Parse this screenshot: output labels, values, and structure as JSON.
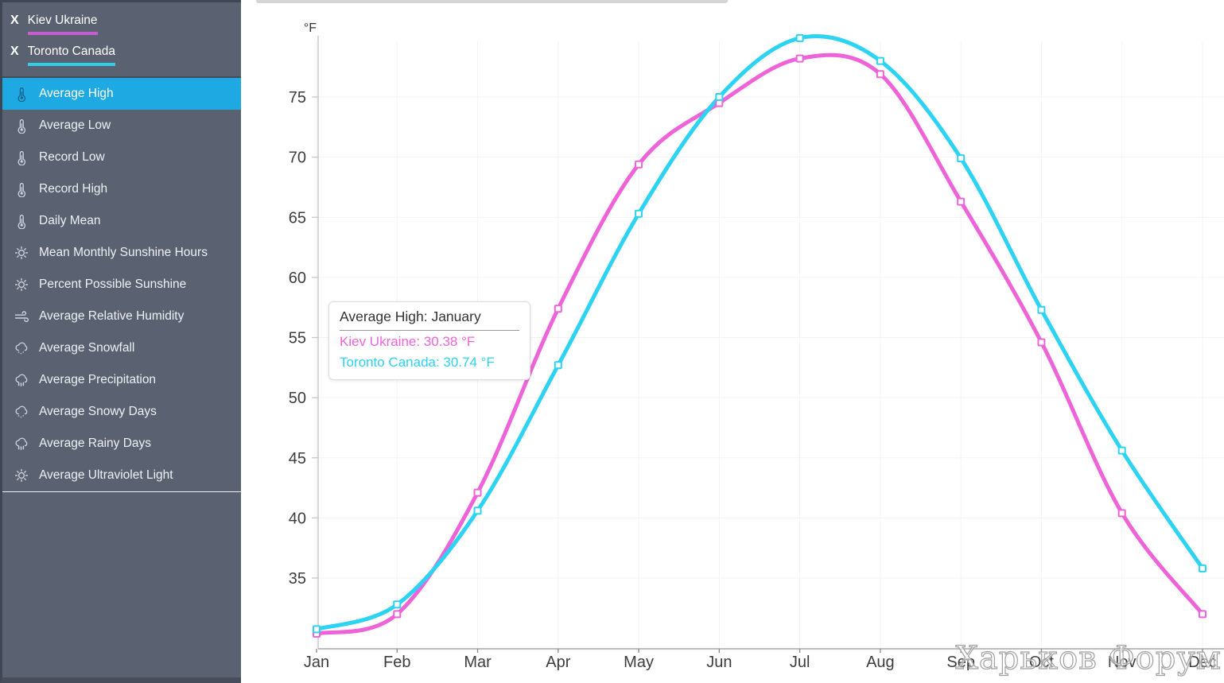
{
  "sidebar": {
    "cities": [
      {
        "label": "Kiev Ukraine",
        "close_label": "X",
        "underline_color": "#c55ed2"
      },
      {
        "label": "Toronto Canada",
        "close_label": "X",
        "underline_color": "#2dd0e8"
      }
    ],
    "menu_items": [
      {
        "label": "Average High",
        "icon": "thermometer",
        "selected": true
      },
      {
        "label": "Average Low",
        "icon": "thermometer",
        "selected": false
      },
      {
        "label": "Record Low",
        "icon": "thermometer",
        "selected": false
      },
      {
        "label": "Record High",
        "icon": "thermometer",
        "selected": false
      },
      {
        "label": "Daily Mean",
        "icon": "thermometer",
        "selected": false
      },
      {
        "label": "Mean Monthly Sunshine Hours",
        "icon": "sun",
        "selected": false
      },
      {
        "label": "Percent Possible Sunshine",
        "icon": "sun",
        "selected": false
      },
      {
        "label": "Average Relative Humidity",
        "icon": "wind",
        "selected": false
      },
      {
        "label": "Average Snowfall",
        "icon": "cloud-snow",
        "selected": false
      },
      {
        "label": "Average Precipitation",
        "icon": "cloud-rain",
        "selected": false
      },
      {
        "label": "Average Snowy Days",
        "icon": "cloud-snow",
        "selected": false
      },
      {
        "label": "Average Rainy Days",
        "icon": "cloud-rain",
        "selected": false
      },
      {
        "label": "Average Ultraviolet Light",
        "icon": "sun",
        "selected": false
      }
    ],
    "selected_color": "#1ea9e2"
  },
  "chart_data": {
    "type": "line",
    "title": "Average High",
    "unit_label": "°F",
    "categories": [
      "Jan",
      "Feb",
      "Mar",
      "Apr",
      "May",
      "Jun",
      "Jul",
      "Aug",
      "Sep",
      "Oct",
      "Nov",
      "Dec"
    ],
    "y_ticks": [
      35,
      40,
      45,
      50,
      55,
      60,
      65,
      70,
      75
    ],
    "ylim": [
      29.5,
      81
    ],
    "grid": true,
    "legend": "none",
    "series": [
      {
        "name": "Kiev Ukraine",
        "color": "#ee64d8",
        "values": [
          30.38,
          32.0,
          42.1,
          57.4,
          69.4,
          74.5,
          78.2,
          76.9,
          66.3,
          54.6,
          40.4,
          32.0
        ]
      },
      {
        "name": "Toronto Canada",
        "color": "#2cd3f2",
        "values": [
          30.74,
          32.8,
          40.6,
          52.7,
          65.3,
          75.0,
          79.9,
          78.0,
          69.9,
          57.3,
          45.6,
          35.8
        ]
      }
    ]
  },
  "tooltip": {
    "title": "Average High: January",
    "rows": [
      {
        "label": "Kiev Ukraine",
        "value": "30.38 °F",
        "color": "#ee64d8"
      },
      {
        "label": "Toronto Canada",
        "value": "30.74 °F",
        "color": "#2cd3f2"
      }
    ]
  },
  "watermark": "Харьков Форум"
}
